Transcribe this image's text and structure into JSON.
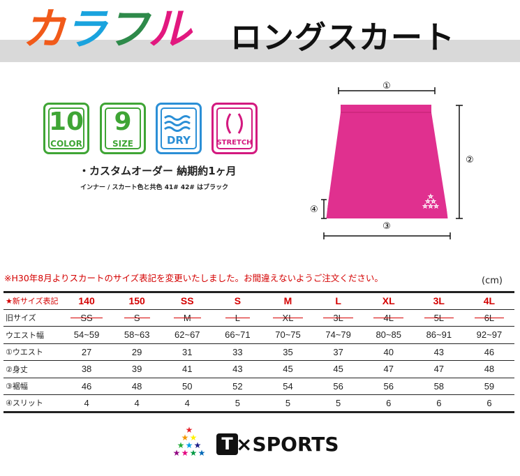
{
  "header": {
    "title_colorful_chars": [
      {
        "char": "カ",
        "color": "#f15a1a"
      },
      {
        "char": "ラ",
        "color": "#1aa3de"
      },
      {
        "char": "フ",
        "color": "#2e8a4a"
      },
      {
        "char": "ル",
        "color": "#e2187f"
      }
    ],
    "title_main": "ロングスカート"
  },
  "badges": [
    {
      "big": "10",
      "small": "COLOR",
      "color": "#3fa535"
    },
    {
      "big": "9",
      "small": "SIZE",
      "color": "#3fa535"
    },
    {
      "big": "",
      "small": "DRY",
      "color": "#2b8fd6",
      "icon": "waves-icon"
    },
    {
      "big": "",
      "small": "STRETCH",
      "color": "#d3197f",
      "icon": "stretch-icon"
    }
  ],
  "spec": {
    "note": "・カスタムオーダー 納期約1ヶ月",
    "sub": "インナー / スカート色と共色 41# 42# はブラック"
  },
  "diagram": {
    "labels": [
      "①",
      "②",
      "③",
      "④"
    ],
    "skirt_color": "#e0308f"
  },
  "notice": "※H30年8月よりスカートのサイズ表記を変更いたしました。お間違えないようご注文ください。",
  "unit": "(cm)",
  "table": {
    "rows": [
      {
        "label": "★新サイズ表記",
        "values": [
          "140",
          "150",
          "SS",
          "S",
          "M",
          "L",
          "XL",
          "3L",
          "4L"
        ]
      },
      {
        "label": "旧サイズ",
        "values": [
          "SS",
          "S",
          "M",
          "L",
          "XL",
          "3L",
          "4L",
          "5L",
          "6L"
        ]
      },
      {
        "label": "ウエスト幅",
        "values": [
          "54~59",
          "58~63",
          "62~67",
          "66~71",
          "70~75",
          "74~79",
          "80~85",
          "86~91",
          "92~97"
        ]
      },
      {
        "label": "①ウエスト",
        "values": [
          "27",
          "29",
          "31",
          "33",
          "35",
          "37",
          "40",
          "43",
          "46"
        ]
      },
      {
        "label": "②身丈",
        "values": [
          "38",
          "39",
          "41",
          "43",
          "45",
          "45",
          "47",
          "47",
          "48"
        ]
      },
      {
        "label": "③裾幅",
        "values": [
          "46",
          "48",
          "50",
          "52",
          "54",
          "56",
          "56",
          "58",
          "59"
        ]
      },
      {
        "label": "④スリット",
        "values": [
          "4",
          "4",
          "4",
          "5",
          "5",
          "5",
          "6",
          "6",
          "6"
        ]
      }
    ]
  },
  "logo": {
    "mark": "T",
    "text": "×SPORTS",
    "star_colors": [
      "#e6212a",
      "#f39800",
      "#fff100",
      "#22ac38",
      "#00a0e9",
      "#1d2088",
      "#920783",
      "#e4007f",
      "#009944",
      "#0068b7"
    ]
  }
}
